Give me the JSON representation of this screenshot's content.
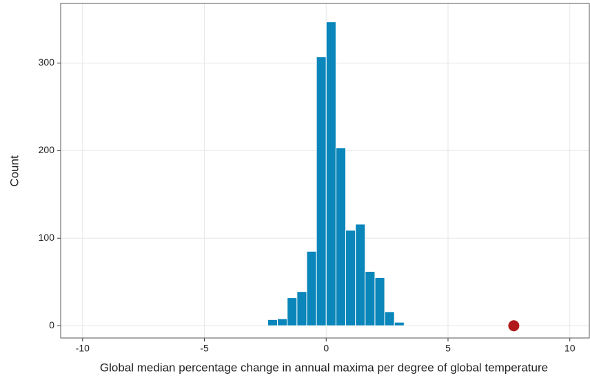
{
  "chart_data": {
    "type": "histogram",
    "x_label": "Global median percentage change in annual maxima per degree of global temperature",
    "y_label": "Count",
    "bins": [
      -2.4,
      -2.0,
      -1.6,
      -1.2,
      -0.8,
      -0.4,
      0,
      0.4,
      0.8,
      1.2,
      1.6,
      2.0,
      2.4,
      2.8,
      3.2
    ],
    "values": [
      7,
      8,
      32,
      39,
      85,
      307,
      347,
      203,
      109,
      116,
      62,
      55,
      16,
      4
    ],
    "color": "#0a86ba",
    "highlight": {
      "x": 7.7,
      "y": 0,
      "color": "#b01a1a"
    },
    "xlim": [
      -10.9,
      10.8
    ],
    "xticks": [
      -10,
      -5,
      0,
      5,
      10
    ],
    "ylim": [
      -14,
      368
    ],
    "yticks": [
      0,
      100,
      200,
      300
    ],
    "grid": true
  }
}
